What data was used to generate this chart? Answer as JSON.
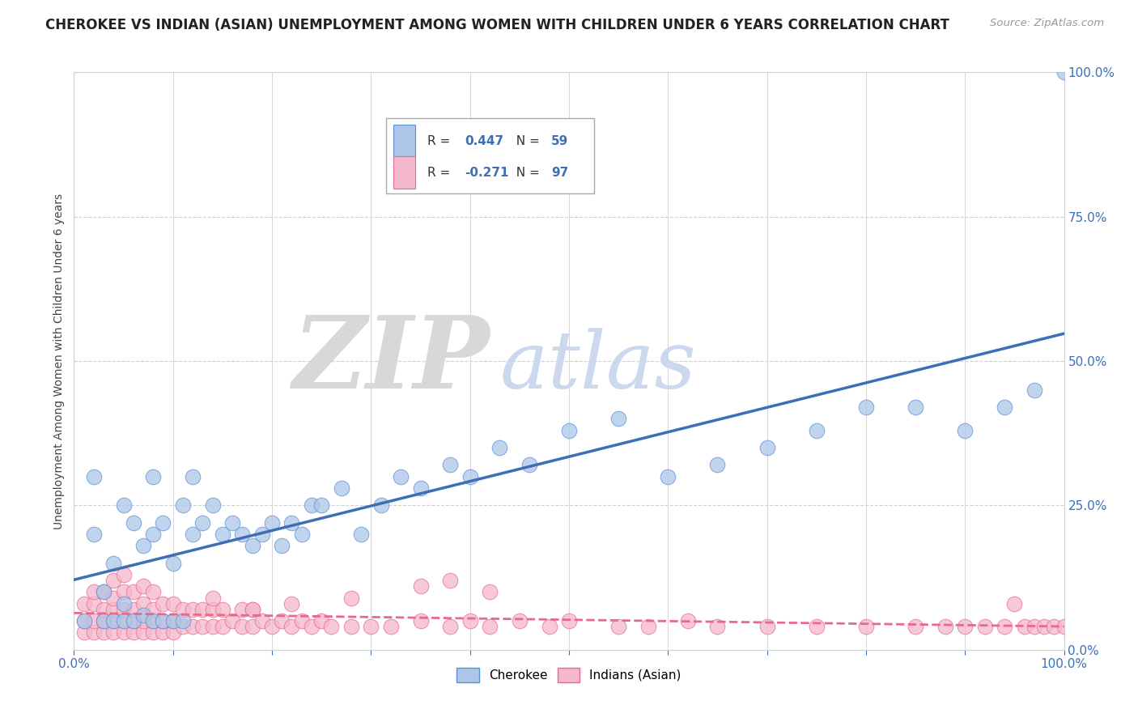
{
  "title": "CHEROKEE VS INDIAN (ASIAN) UNEMPLOYMENT AMONG WOMEN WITH CHILDREN UNDER 6 YEARS CORRELATION CHART",
  "source": "Source: ZipAtlas.com",
  "ylabel": "Unemployment Among Women with Children Under 6 years",
  "watermark_zip": "ZIP",
  "watermark_atlas": "atlas",
  "legend_r_value_cherokee": "0.447",
  "legend_n_value_cherokee": "59",
  "legend_r_value_indian": "-0.271",
  "legend_n_value_indian": "97",
  "cherokee_color": "#adc6e8",
  "cherokee_line_color": "#3e6fb5",
  "cherokee_edge_color": "#5b8fd4",
  "indian_color": "#f5b8cc",
  "indian_line_color": "#e8698a",
  "indian_edge_color": "#e8698a",
  "background_color": "#ffffff",
  "grid_color": "#d0d0d0",
  "xlim": [
    0.0,
    1.0
  ],
  "ylim": [
    0.0,
    1.0
  ],
  "xticks": [
    0.0,
    0.1,
    0.2,
    0.3,
    0.4,
    0.5,
    0.6,
    0.7,
    0.8,
    0.9,
    1.0
  ],
  "yticks_right": [
    0.0,
    0.25,
    0.5,
    0.75,
    1.0
  ],
  "ytick_labels_right": [
    "0.0%",
    "25.0%",
    "50.0%",
    "75.0%",
    "100.0%"
  ],
  "xtick_labels": [
    "0.0%",
    "",
    "",
    "",
    "",
    "",
    "",
    "",
    "",
    "",
    "100.0%"
  ],
  "title_fontsize": 12,
  "axis_label_fontsize": 10,
  "tick_fontsize": 11,
  "cherokee_x": [
    0.01,
    0.02,
    0.02,
    0.03,
    0.03,
    0.04,
    0.04,
    0.05,
    0.05,
    0.05,
    0.06,
    0.06,
    0.07,
    0.07,
    0.08,
    0.08,
    0.08,
    0.09,
    0.09,
    0.1,
    0.1,
    0.11,
    0.11,
    0.12,
    0.12,
    0.13,
    0.14,
    0.15,
    0.16,
    0.17,
    0.18,
    0.19,
    0.2,
    0.21,
    0.22,
    0.23,
    0.24,
    0.25,
    0.27,
    0.29,
    0.31,
    0.33,
    0.35,
    0.38,
    0.4,
    0.43,
    0.46,
    0.5,
    0.55,
    0.6,
    0.65,
    0.7,
    0.75,
    0.8,
    0.85,
    0.9,
    0.94,
    0.97,
    1.0
  ],
  "cherokee_y": [
    0.05,
    0.2,
    0.3,
    0.05,
    0.1,
    0.05,
    0.15,
    0.05,
    0.08,
    0.25,
    0.05,
    0.22,
    0.06,
    0.18,
    0.05,
    0.2,
    0.3,
    0.05,
    0.22,
    0.05,
    0.15,
    0.05,
    0.25,
    0.2,
    0.3,
    0.22,
    0.25,
    0.2,
    0.22,
    0.2,
    0.18,
    0.2,
    0.22,
    0.18,
    0.22,
    0.2,
    0.25,
    0.25,
    0.28,
    0.2,
    0.25,
    0.3,
    0.28,
    0.32,
    0.3,
    0.35,
    0.32,
    0.38,
    0.4,
    0.3,
    0.32,
    0.35,
    0.38,
    0.42,
    0.42,
    0.38,
    0.42,
    0.45,
    1.0
  ],
  "indian_x": [
    0.01,
    0.01,
    0.01,
    0.02,
    0.02,
    0.02,
    0.02,
    0.03,
    0.03,
    0.03,
    0.03,
    0.04,
    0.04,
    0.04,
    0.04,
    0.04,
    0.05,
    0.05,
    0.05,
    0.05,
    0.05,
    0.06,
    0.06,
    0.06,
    0.06,
    0.07,
    0.07,
    0.07,
    0.07,
    0.08,
    0.08,
    0.08,
    0.08,
    0.09,
    0.09,
    0.09,
    0.1,
    0.1,
    0.1,
    0.11,
    0.11,
    0.12,
    0.12,
    0.13,
    0.13,
    0.14,
    0.14,
    0.15,
    0.15,
    0.16,
    0.17,
    0.17,
    0.18,
    0.18,
    0.19,
    0.2,
    0.21,
    0.22,
    0.23,
    0.24,
    0.25,
    0.26,
    0.28,
    0.3,
    0.32,
    0.35,
    0.38,
    0.4,
    0.42,
    0.45,
    0.48,
    0.5,
    0.55,
    0.58,
    0.62,
    0.65,
    0.7,
    0.75,
    0.8,
    0.85,
    0.88,
    0.9,
    0.92,
    0.94,
    0.95,
    0.96,
    0.97,
    0.98,
    0.99,
    1.0,
    0.38,
    0.42,
    0.35,
    0.28,
    0.22,
    0.18,
    0.14
  ],
  "indian_y": [
    0.03,
    0.05,
    0.08,
    0.03,
    0.05,
    0.08,
    0.1,
    0.03,
    0.05,
    0.07,
    0.1,
    0.03,
    0.05,
    0.07,
    0.09,
    0.12,
    0.03,
    0.05,
    0.07,
    0.1,
    0.13,
    0.03,
    0.05,
    0.07,
    0.1,
    0.03,
    0.05,
    0.08,
    0.11,
    0.03,
    0.05,
    0.07,
    0.1,
    0.03,
    0.05,
    0.08,
    0.03,
    0.05,
    0.08,
    0.04,
    0.07,
    0.04,
    0.07,
    0.04,
    0.07,
    0.04,
    0.07,
    0.04,
    0.07,
    0.05,
    0.04,
    0.07,
    0.04,
    0.07,
    0.05,
    0.04,
    0.05,
    0.04,
    0.05,
    0.04,
    0.05,
    0.04,
    0.04,
    0.04,
    0.04,
    0.05,
    0.04,
    0.05,
    0.04,
    0.05,
    0.04,
    0.05,
    0.04,
    0.04,
    0.05,
    0.04,
    0.04,
    0.04,
    0.04,
    0.04,
    0.04,
    0.04,
    0.04,
    0.04,
    0.08,
    0.04,
    0.04,
    0.04,
    0.04,
    0.04,
    0.12,
    0.1,
    0.11,
    0.09,
    0.08,
    0.07,
    0.09
  ]
}
